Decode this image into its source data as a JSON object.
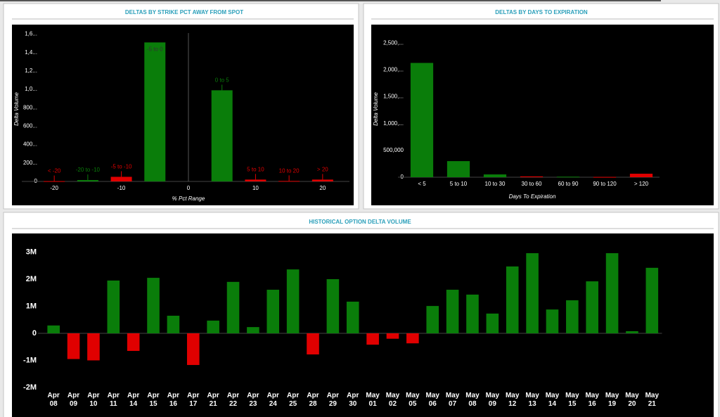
{
  "chart_data": [
    {
      "type": "bar",
      "title": "DELTAS BY STRIKE PCT AWAY FROM SPOT",
      "y_label": "Delta Volume",
      "x_label": "% Pct Range",
      "categories": [
        "< -20",
        "-20 to -10",
        "-5 to -10",
        "-5 to 0",
        "0 to 5",
        "5 to 10",
        "10 to 20",
        "> 20"
      ],
      "x": [
        -20,
        -15,
        -10,
        -5,
        5,
        10,
        15,
        20
      ],
      "values": [
        3,
        15,
        50,
        1510,
        990,
        20,
        5,
        20
      ],
      "colors": [
        "#e00000",
        "#0a7d0a",
        "#e00000",
        "#0a7d0a",
        "#0a7d0a",
        "#e00000",
        "#e00000",
        "#e00000"
      ],
      "xlim": [
        -24,
        24
      ],
      "xticks": [
        -20,
        -10,
        0,
        10,
        20
      ],
      "ylim": [
        0,
        1650
      ],
      "yticks": [
        0,
        {
          "value": 200,
          "label": "200..."
        },
        {
          "value": 400,
          "label": "400..."
        },
        {
          "value": 600,
          "label": "600..."
        },
        {
          "value": 800,
          "label": "800..."
        },
        {
          "value": 1000,
          "label": "1,0..."
        },
        {
          "value": 1200,
          "label": "1,2..."
        },
        {
          "value": 1400,
          "label": "1,4..."
        },
        {
          "value": 1600,
          "label": "1,6..."
        }
      ]
    },
    {
      "type": "bar",
      "title": "DELTAS BY DAYS TO EXPIRATION",
      "y_label": "Delta Volume",
      "x_label": "Days To Expiration",
      "categories": [
        "< 5",
        "5 to 10",
        "10 to 30",
        "30 to 60",
        "60 to 90",
        "90 to 120",
        "> 120"
      ],
      "values": [
        2130000,
        300000,
        52000,
        15000,
        10000,
        5000,
        65000
      ],
      "colors": [
        "#0a7d0a",
        "#0a7d0a",
        "#0a7d0a",
        "#e00000",
        "#0a7d0a",
        "#e00000",
        "#e00000"
      ],
      "ylim": [
        0,
        2700000
      ],
      "yticks": [
        0,
        {
          "value": 500000,
          "label": "500,000"
        },
        {
          "value": 1000000,
          "label": "1,000,..."
        },
        {
          "value": 1500000,
          "label": "1,500,..."
        },
        {
          "value": 2000000,
          "label": "2,000,..."
        },
        {
          "value": 2500000,
          "label": "2,500,..."
        }
      ]
    },
    {
      "type": "bar",
      "title": "HISTORICAL OPTION DELTA VOLUME",
      "categories": [
        "Apr 08",
        "Apr 09",
        "Apr 10",
        "Apr 11",
        "Apr 14",
        "Apr 15",
        "Apr 16",
        "Apr 17",
        "Apr 21",
        "Apr 22",
        "Apr 23",
        "Apr 24",
        "Apr 25",
        "Apr 28",
        "Apr 29",
        "Apr 30",
        "May 01",
        "May 02",
        "May 05",
        "May 06",
        "May 07",
        "May 08",
        "May 09",
        "May 12",
        "May 13",
        "May 14",
        "May 15",
        "May 16",
        "May 19",
        "May 20",
        "May 21"
      ],
      "values": [
        0.29,
        -0.95,
        -1.0,
        1.95,
        -0.65,
        2.05,
        0.65,
        -1.17,
        0.47,
        1.9,
        0.23,
        1.61,
        2.36,
        -0.78,
        2.0,
        1.17,
        -0.42,
        -0.2,
        -0.37,
        1.01,
        1.61,
        1.43,
        0.73,
        2.47,
        2.96,
        0.88,
        1.22,
        1.92,
        2.96,
        0.08,
        2.42
      ],
      "color": "#0a7d0a",
      "negative_color": "#e00000",
      "ylim": [
        -2.2,
        3.6
      ],
      "yticks": [
        {
          "value": -2,
          "label": "-2M"
        },
        {
          "value": -1,
          "label": "-1M"
        },
        0,
        {
          "value": 1,
          "label": "1M"
        },
        {
          "value": 2,
          "label": "2M"
        },
        {
          "value": 3,
          "label": "3M"
        }
      ]
    }
  ]
}
